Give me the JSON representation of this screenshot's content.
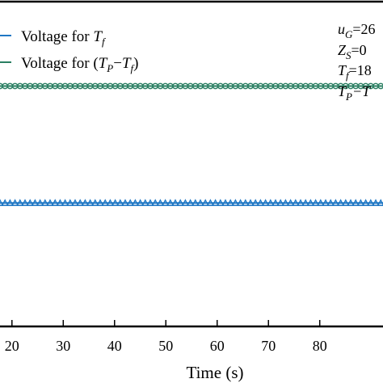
{
  "chart_data": {
    "type": "line",
    "xlabel": "Time (s)",
    "ylabel": "",
    "xlim": [
      12,
      98
    ],
    "ylim": [
      0,
      1
    ],
    "x_tick_labels": [
      "20",
      "30",
      "40",
      "50",
      "60",
      "70",
      "80"
    ],
    "x_ticks": [
      20,
      30,
      40,
      50,
      60,
      70,
      80
    ],
    "grid": false,
    "legend_position": "top-left",
    "series": [
      {
        "name": "Voltage for T_f",
        "legend_prefix": "Voltage for ",
        "legend_symbol": "T",
        "legend_sub": "f",
        "color": "#1f77c4",
        "marker": "triangle",
        "x": [
          12,
          98
        ],
        "y": [
          0.38,
          0.38
        ]
      },
      {
        "name": "Voltage for (T_P-T_f)",
        "legend_prefix": "Voltage for (",
        "legend_symbol": "T",
        "legend_sub": "P",
        "legend_mid": "−",
        "legend_symbol2": "T",
        "legend_sub2": "f",
        "legend_suffix": ")",
        "color": "#2a7f62",
        "marker": "circle",
        "x": [
          12,
          98
        ],
        "y": [
          0.74,
          0.74
        ]
      }
    ],
    "annotations": [
      {
        "var": "u",
        "sub": "G",
        "text": "=26"
      },
      {
        "var": "Z",
        "sub": "S",
        "text": "=0"
      },
      {
        "var": "T",
        "sub": "f",
        "text": "=18"
      },
      {
        "var": "T",
        "sub": "P",
        "text": "−T"
      }
    ]
  }
}
